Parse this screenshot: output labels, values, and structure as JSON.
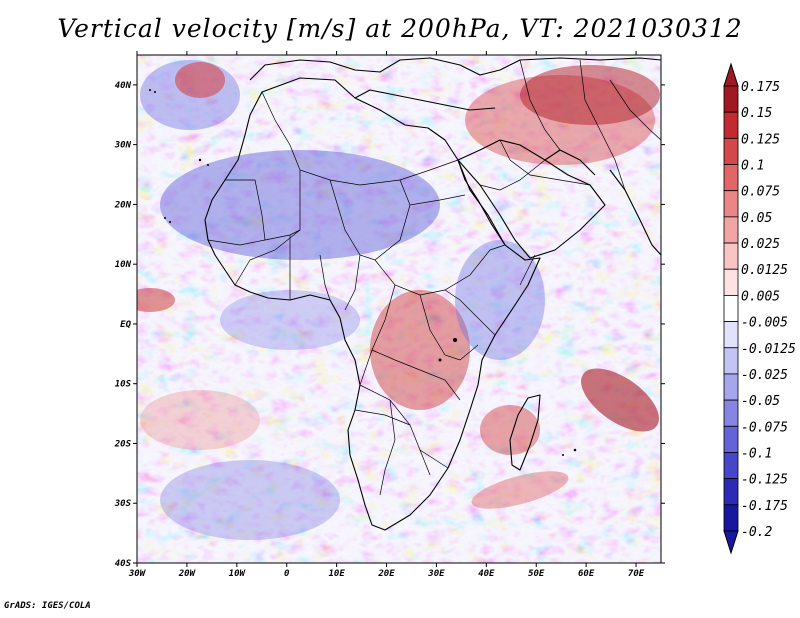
{
  "title": "Vertical velocity [m/s] at 200hPa, VT: 2021030312",
  "credit": "GrADS: IGES/COLA",
  "map": {
    "region": "Africa",
    "lon_range": [
      -30,
      75
    ],
    "lat_range": [
      -40,
      45
    ],
    "lat_ticks": [
      {
        "value": 40,
        "label": "40N"
      },
      {
        "value": 30,
        "label": "30N"
      },
      {
        "value": 20,
        "label": "20N"
      },
      {
        "value": 10,
        "label": "10N"
      },
      {
        "value": 0,
        "label": "EQ"
      },
      {
        "value": -10,
        "label": "10S"
      },
      {
        "value": -20,
        "label": "20S"
      },
      {
        "value": -30,
        "label": "30S"
      },
      {
        "value": -40,
        "label": "40S"
      }
    ],
    "lon_ticks": [
      {
        "value": -30,
        "label": "30W"
      },
      {
        "value": -20,
        "label": "20W"
      },
      {
        "value": -10,
        "label": "10W"
      },
      {
        "value": 0,
        "label": "0"
      },
      {
        "value": 10,
        "label": "10E"
      },
      {
        "value": 20,
        "label": "20E"
      },
      {
        "value": 30,
        "label": "30E"
      },
      {
        "value": 40,
        "label": "40E"
      },
      {
        "value": 50,
        "label": "50E"
      },
      {
        "value": 60,
        "label": "60E"
      },
      {
        "value": 70,
        "label": "70E"
      }
    ]
  },
  "colorbar": {
    "units": "m/s",
    "colors": [
      "#a01822",
      "#c22a30",
      "#d4474a",
      "#e06668",
      "#ea8687",
      "#f2a5a5",
      "#f8c4c4",
      "#fce2e2",
      "#ffffff",
      "#e2e2fc",
      "#c4c4f4",
      "#a6a6ec",
      "#8686e2",
      "#6464d8",
      "#4646ca",
      "#2b2bb8",
      "#18189e"
    ],
    "labels": [
      "0.175",
      "0.15",
      "0.125",
      "0.1",
      "0.075",
      "0.05",
      "0.025",
      "0.0125",
      "0.005",
      "-0.005",
      "-0.0125",
      "-0.025",
      "-0.05",
      "-0.075",
      "-0.1",
      "-0.125",
      "-0.175",
      "-0.2"
    ]
  }
}
